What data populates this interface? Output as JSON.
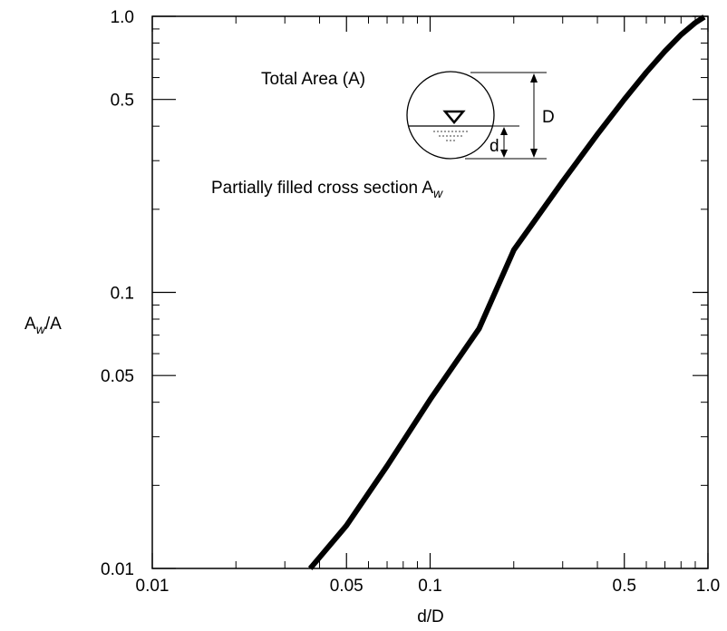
{
  "chart_data": {
    "type": "line",
    "title": "",
    "xlabel": "d/D",
    "ylabel_main": "A",
    "ylabel_sub": "w",
    "ylabel_tail": "/A",
    "xscale": "log",
    "yscale": "log",
    "xlim": [
      0.01,
      1.0
    ],
    "ylim": [
      0.01,
      1.0
    ],
    "grid": false,
    "x_tick_labels": [
      {
        "value": 0.01,
        "label": "0.01"
      },
      {
        "value": 0.05,
        "label": "0.05"
      },
      {
        "value": 0.1,
        "label": "0.1"
      },
      {
        "value": 0.5,
        "label": "0.5"
      },
      {
        "value": 1.0,
        "label": "1.0"
      }
    ],
    "y_tick_labels": [
      {
        "value": 0.01,
        "label": "0.01"
      },
      {
        "value": 0.05,
        "label": "0.05"
      },
      {
        "value": 0.1,
        "label": "0.1"
      },
      {
        "value": 0.5,
        "label": "0.5"
      },
      {
        "value": 1.0,
        "label": "1.0"
      }
    ],
    "series": [
      {
        "color": "#000000",
        "x": [
          0.037,
          0.05,
          0.07,
          0.1,
          0.15,
          0.2,
          0.3,
          0.4,
          0.5,
          0.6,
          0.7,
          0.8,
          0.9,
          0.97
        ],
        "y": [
          0.01,
          0.0143,
          0.0235,
          0.0409,
          0.0739,
          0.1424,
          0.2523,
          0.3735,
          0.5,
          0.6265,
          0.7477,
          0.8576,
          0.948,
          0.995
        ]
      }
    ],
    "annotations": {
      "total_area": "Total Area (A)",
      "partial_prefix": "Partially filled cross section A",
      "partial_sub": "w",
      "diameter_label": "D",
      "depth_label": "d"
    }
  }
}
